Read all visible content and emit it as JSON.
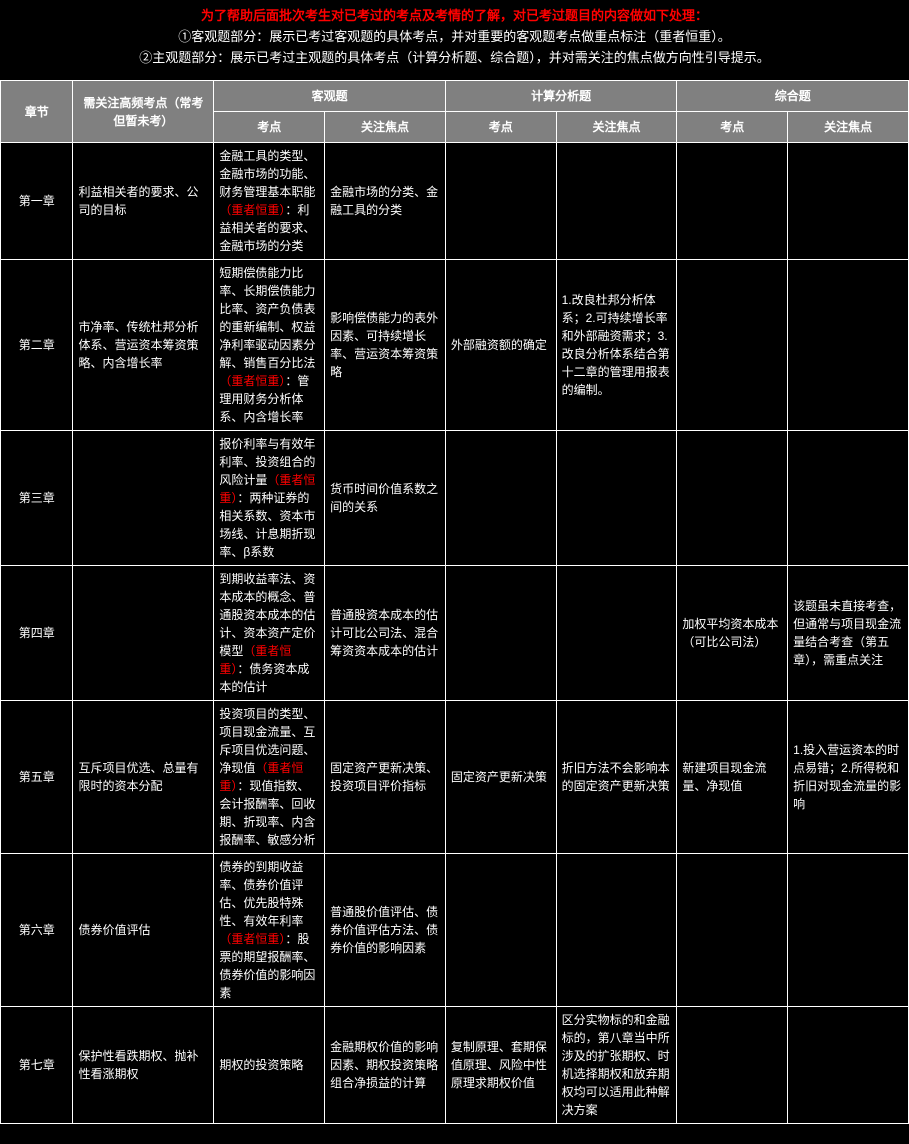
{
  "intro": {
    "line1": "为了帮助后面批次考生对已考过的考点及考情的了解，对已考过题目的内容做如下处理：",
    "line2": "①客观题部分：展示已考过客观题的具体考点，并对重要的客观题考点做重点标注（重者恒重）。",
    "line3": "②主观题部分：展示已考过主观题的具体考点（计算分析题、综合题），并对需关注的焦点做方向性引导提示。"
  },
  "header": {
    "chapter": "章节",
    "freq": "需关注高频考点（常考但暂未考）",
    "objective": "客观题",
    "calc": "计算分析题",
    "comprehensive": "综合题",
    "kaodian": "考点",
    "focus": "关注焦点"
  },
  "rows": [
    {
      "chapter": "第一章",
      "freq": "利益相关者的要求、公司的目标",
      "obj_kd_pre": "金融工具的类型、金融市场的功能、财务管理基本职能",
      "obj_kd_red": "（重者恒重）",
      "obj_kd_post": "：利益相关者的要求、金融市场的分类",
      "obj_focus": "金融市场的分类、金融工具的分类",
      "calc_kd": "",
      "calc_focus": "",
      "comp_kd": "",
      "comp_focus": ""
    },
    {
      "chapter": "第二章",
      "freq": "市净率、传统杜邦分析体系、营运资本筹资策略、内含增长率",
      "obj_kd_pre": "短期偿债能力比率、长期偿债能力比率、资产负债表的重新编制、权益净利率驱动因素分解、销售百分比法",
      "obj_kd_red": "（重者恒重）",
      "obj_kd_post": "：管理用财务分析体系、内含增长率",
      "obj_focus": "影响偿债能力的表外因素、可持续增长率、营运资本筹资策略",
      "calc_kd": "外部融资额的确定",
      "calc_focus": "1.改良杜邦分析体系；2.可持续增长率和外部融资需求；3.改良分析体系结合第十二章的管理用报表的编制。",
      "comp_kd": "",
      "comp_focus": ""
    },
    {
      "chapter": "第三章",
      "freq": "",
      "obj_kd_pre": "报价利率与有效年利率、投资组合的风险计量",
      "obj_kd_red": "（重者恒重）",
      "obj_kd_post": "：两种证券的相关系数、资本市场线、计息期折现率、β系数",
      "obj_focus": "货币时间价值系数之间的关系",
      "calc_kd": "",
      "calc_focus": "",
      "comp_kd": "",
      "comp_focus": ""
    },
    {
      "chapter": "第四章",
      "freq": "",
      "obj_kd_pre": "到期收益率法、资本成本的概念、普通股资本成本的估计、资本资产定价模型",
      "obj_kd_red": "（重者恒重）",
      "obj_kd_post": "：债务资本成本的估计",
      "obj_focus": "普通股资本成本的估计可比公司法、混合筹资资本成本的估计",
      "calc_kd": "",
      "calc_focus": "",
      "comp_kd": "加权平均资本成本（可比公司法）",
      "comp_focus": "该题虽未直接考查，但通常与项目现金流量结合考查（第五章），需重点关注"
    },
    {
      "chapter": "第五章",
      "freq": "互斥项目优选、总量有限时的资本分配",
      "obj_kd_pre": "投资项目的类型、项目现金流量、互斥项目优选问题、净现值",
      "obj_kd_red": "（重者恒重）",
      "obj_kd_post": "：现值指数、会计报酬率、回收期、折现率、内含报酬率、敏感分析",
      "obj_focus": "固定资产更新决策、投资项目评价指标",
      "calc_kd": "固定资产更新决策",
      "calc_focus": "折旧方法不会影响本的固定资产更新决策",
      "comp_kd": "新建项目现金流量、净现值",
      "comp_focus": "1.投入营运资本的时点易错；2.所得税和折旧对现金流量的影响"
    },
    {
      "chapter": "第六章",
      "freq": "债券价值评估",
      "obj_kd_pre": "债券的到期收益率、债券价值评估、优先股特殊性、有效年利率",
      "obj_kd_red": "（重者恒重）",
      "obj_kd_post": "：股票的期望报酬率、债券价值的影响因素",
      "obj_focus": "普通股价值评估、债券价值评估方法、债券价值的影响因素",
      "calc_kd": "",
      "calc_focus": "",
      "comp_kd": "",
      "comp_focus": ""
    },
    {
      "chapter": "第七章",
      "freq": "保护性看跌期权、抛补性看涨期权",
      "obj_kd_pre": "期权的投资策略",
      "obj_kd_red": "",
      "obj_kd_post": "",
      "obj_focus": "金融期权价值的影响因素、期权投资策略组合净损益的计算",
      "calc_kd": "复制原理、套期保值原理、风险中性原理求期权价值",
      "calc_focus": "区分实物标的和金融标的，第八章当中所涉及的扩张期权、时机选择期权和放弃期权均可以适用此种解决方案",
      "comp_kd": "",
      "comp_focus": ""
    }
  ]
}
